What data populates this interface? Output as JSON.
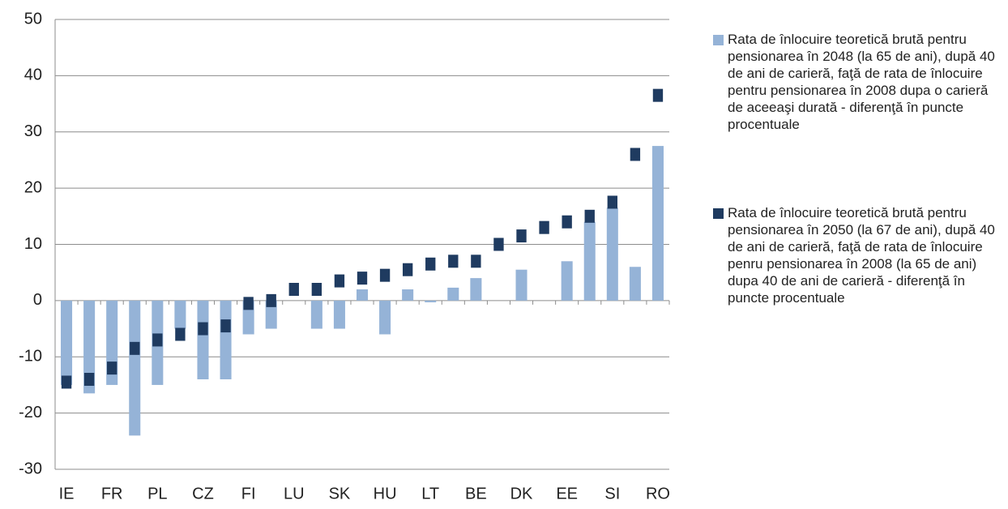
{
  "chart_data": {
    "type": "bar",
    "categories": [
      "IE",
      null,
      "FR",
      null,
      "PL",
      null,
      "CZ",
      null,
      "FI",
      null,
      "LU",
      null,
      "SK",
      null,
      "HU",
      null,
      "LT",
      null,
      "BE",
      null,
      "DK",
      null,
      "EE",
      null,
      "SI",
      null,
      "RO"
    ],
    "series": [
      {
        "name": "Rata de înlocuire teoretică brută pentru pensionarea în 2048 (la 65 de ani), după 40 de ani de carieră, faţă de rata de înlocuire pentru pensionarea în 2008 dupa o carieră de aceeaşi durată - diferenţă în puncte procentuale",
        "color": "#95b3d7",
        "mark": "bar",
        "values": [
          -15,
          -16.5,
          -15,
          -24,
          -15,
          -5,
          -14,
          -14,
          -6,
          -5,
          null,
          -5,
          -5,
          2,
          -6,
          2,
          -0.3,
          2.3,
          4,
          null,
          5.5,
          null,
          7,
          14,
          16.5,
          6,
          27.5
        ]
      },
      {
        "name": "Rata de înlocuire teoretică brută pentru pensionarea în 2050 (la 67 de ani), după 40 de ani de carieră, faţă de rata de înlocuire penru pensionarea în 2008 (la 65 de ani) dupa 40 de ani de carieră - diferenţă în puncte procentuale",
        "color": "#1f3b60",
        "mark": "marker",
        "values": [
          -14.5,
          -14,
          -12,
          -8.5,
          -7,
          -6,
          -5,
          -4.5,
          -0.5,
          0,
          2,
          2,
          3.5,
          4,
          4.5,
          5.5,
          6.5,
          7,
          7,
          10,
          11.5,
          13,
          14,
          15,
          17.5,
          26,
          36.5
        ]
      }
    ],
    "ylim": [
      -30,
      50
    ],
    "yticks": [
      -30,
      -20,
      -10,
      0,
      10,
      20,
      30,
      40,
      50
    ],
    "grid": true
  }
}
